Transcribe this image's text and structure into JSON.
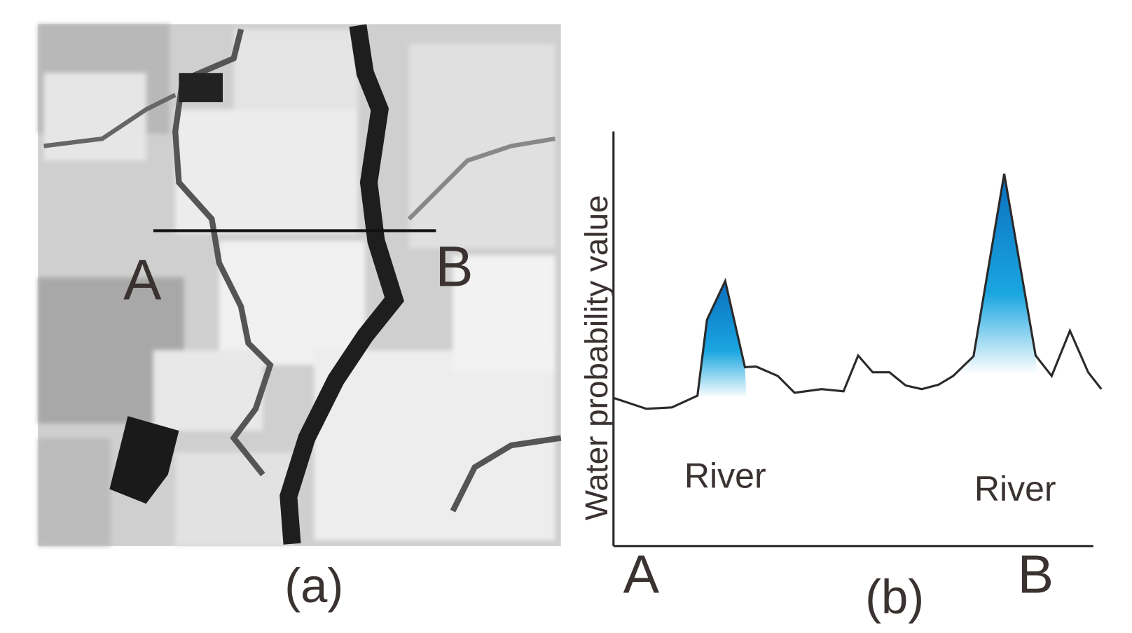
{
  "panel_a": {
    "point_a": "A",
    "point_b": "B",
    "caption": "(a)"
  },
  "panel_b": {
    "y_axis_label": "Water probability value",
    "x_start": "A",
    "x_end": "B",
    "annotations": [
      "River",
      "River"
    ],
    "caption": "(b)"
  }
}
